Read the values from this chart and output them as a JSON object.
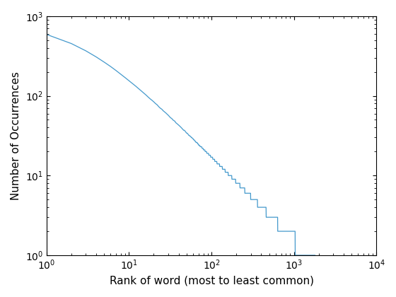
{
  "xlabel": "Rank of word (most to least common)",
  "ylabel": "Number of Occurrences",
  "line_color": "#4499cc",
  "xlim": [
    1,
    10000
  ],
  "ylim": [
    1,
    1000
  ],
  "background_color": "#ffffff",
  "font_size": 11
}
